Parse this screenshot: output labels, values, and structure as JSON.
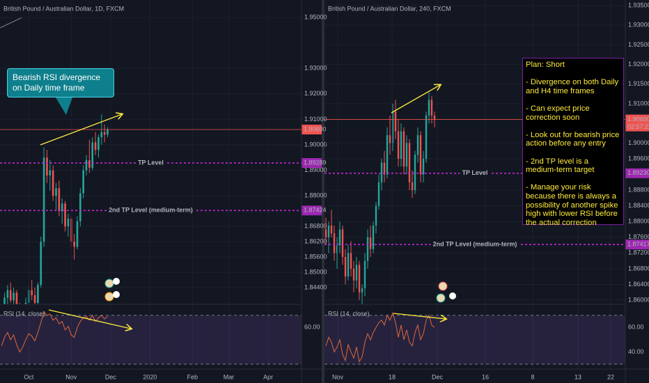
{
  "chart_data": [
    {
      "type": "candlestick",
      "title": "British Pound / Australian Dollar, 1D, FXCM",
      "up_color": "#26a69a",
      "down_color": "#ef5350",
      "grid": true,
      "xlim": [
        -0.5,
        99
      ],
      "ylim": [
        1.83743,
        1.95683
      ],
      "xticks": [
        {
          "value": 9,
          "label": "Oct"
        },
        {
          "value": 23,
          "label": "Nov"
        },
        {
          "value": 36,
          "label": "Dec"
        },
        {
          "value": 49,
          "label": "2020"
        },
        {
          "value": 63,
          "label": "Feb"
        },
        {
          "value": 75,
          "label": "Mar"
        },
        {
          "value": 88,
          "label": "Apr"
        }
      ],
      "yticks": [
        {
          "value": 1.95,
          "label": "1.95000"
        },
        {
          "value": 1.93,
          "label": "1.93000"
        },
        {
          "value": 1.92,
          "label": "1.92000"
        },
        {
          "value": 1.91,
          "label": "1.91000"
        },
        {
          "value": 1.9,
          "label": "1.90000"
        },
        {
          "value": 1.89,
          "label": "1.89000"
        },
        {
          "value": 1.88,
          "label": "1.88000"
        },
        {
          "value": 1.868,
          "label": "1.86800"
        },
        {
          "value": 1.862,
          "label": "1.86200"
        },
        {
          "value": 1.856,
          "label": "1.85600"
        },
        {
          "value": 1.85,
          "label": "1.85000"
        },
        {
          "value": 1.844,
          "label": "1.84400"
        }
      ],
      "open": [
        1.832,
        1.834,
        1.84,
        1.843,
        1.839,
        1.842,
        1.835,
        1.83,
        1.832,
        1.838,
        1.843,
        1.841,
        1.838,
        1.845,
        1.862,
        1.895,
        1.888,
        1.89,
        1.88,
        1.883,
        1.874,
        1.877,
        1.868,
        1.871,
        1.862,
        1.86,
        1.87,
        1.881,
        1.89,
        1.894,
        1.891,
        1.901,
        1.898,
        1.903,
        1.905,
        1.904
      ],
      "high": [
        1.836,
        1.842,
        1.845,
        1.846,
        1.844,
        1.843,
        1.838,
        1.834,
        1.84,
        1.845,
        1.847,
        1.844,
        1.846,
        1.864,
        1.899,
        1.898,
        1.894,
        1.892,
        1.885,
        1.886,
        1.879,
        1.878,
        1.873,
        1.872,
        1.865,
        1.872,
        1.883,
        1.892,
        1.896,
        1.902,
        1.903,
        1.905,
        1.904,
        1.912,
        1.908,
        1.907
      ],
      "low": [
        1.829,
        1.832,
        1.837,
        1.838,
        1.836,
        1.834,
        1.828,
        1.825,
        1.83,
        1.835,
        1.839,
        1.836,
        1.837,
        1.844,
        1.86,
        1.885,
        1.882,
        1.878,
        1.874,
        1.872,
        1.869,
        1.866,
        1.864,
        1.86,
        1.855,
        1.859,
        1.868,
        1.879,
        1.888,
        1.889,
        1.89,
        1.896,
        1.895,
        1.9,
        1.901,
        1.903
      ],
      "close": [
        1.834,
        1.84,
        1.843,
        1.839,
        1.842,
        1.835,
        1.83,
        1.832,
        1.838,
        1.843,
        1.841,
        1.838,
        1.845,
        1.862,
        1.895,
        1.888,
        1.89,
        1.88,
        1.883,
        1.874,
        1.877,
        1.868,
        1.871,
        1.862,
        1.86,
        1.87,
        1.881,
        1.89,
        1.894,
        1.891,
        1.901,
        1.898,
        1.903,
        1.905,
        1.904,
        1.906
      ],
      "last_price": {
        "value": 1.906,
        "label": "1.90600"
      },
      "levels": [
        {
          "name": "TP Level",
          "price": 1.89289
        },
        {
          "name": "2nd TP Level (medium-term)",
          "price": 1.87424
        }
      ],
      "annotation": "Bearish RSI divergence on Daily time frame",
      "rsi": {
        "title": "RSI (14, close)",
        "color": "#e0683a",
        "ylim": [
          26,
          79
        ],
        "yticks": [
          {
            "value": 60,
            "label": "60.00"
          }
        ],
        "levels": [
          70,
          30
        ],
        "values": [
          45,
          52,
          56,
          50,
          54,
          46,
          40,
          44,
          50,
          55,
          53,
          49,
          56,
          64,
          73,
          70,
          71,
          66,
          68,
          63,
          65,
          58,
          61,
          54,
          52,
          60,
          65,
          68,
          69,
          66,
          70,
          65,
          68,
          70,
          67,
          69
        ]
      }
    },
    {
      "type": "candlestick",
      "title": "British Pound / Australian Dollar, 240, FXCM",
      "up_color": "#26a69a",
      "down_color": "#ef5350",
      "grid": true,
      "xlim": [
        -0.5,
        107.5
      ],
      "ylim": [
        1.85894,
        1.93642
      ],
      "xticks": [
        {
          "value": 4.25,
          "label": "Nov"
        },
        {
          "value": 23.75,
          "label": "18"
        },
        {
          "value": 40,
          "label": "Dec"
        },
        {
          "value": 57.25,
          "label": "16"
        },
        {
          "value": 74.25,
          "label": "8"
        },
        {
          "value": 90.5,
          "label": "13"
        },
        {
          "value": 102.25,
          "label": "22"
        }
      ],
      "yticks": [
        {
          "value": 1.935,
          "label": "1.93500"
        },
        {
          "value": 1.93,
          "label": "1.93000"
        },
        {
          "value": 1.925,
          "label": "1.92500"
        },
        {
          "value": 1.92,
          "label": "1.92000"
        },
        {
          "value": 1.915,
          "label": "1.91500"
        },
        {
          "value": 1.91,
          "label": "1.91000"
        },
        {
          "value": 1.9,
          "label": "1.90000"
        },
        {
          "value": 1.896,
          "label": "1.89600"
        },
        {
          "value": 1.888,
          "label": "1.88800"
        },
        {
          "value": 1.884,
          "label": "1.88400"
        },
        {
          "value": 1.88,
          "label": "1.88000"
        },
        {
          "value": 1.876,
          "label": "1.87600"
        },
        {
          "value": 1.872,
          "label": "1.87200"
        },
        {
          "value": 1.868,
          "label": "1.86800"
        },
        {
          "value": 1.864,
          "label": "1.86400"
        },
        {
          "value": 1.86,
          "label": "1.86000"
        }
      ],
      "open": [
        1.878,
        1.876,
        1.879,
        1.877,
        1.872,
        1.874,
        1.878,
        1.871,
        1.866,
        1.872,
        1.868,
        1.865,
        1.869,
        1.862,
        1.863,
        1.87,
        1.876,
        1.873,
        1.879,
        1.884,
        1.89,
        1.895,
        1.892,
        1.902,
        1.9,
        1.908,
        1.903,
        1.896,
        1.903,
        1.894,
        1.9,
        1.89,
        1.888,
        1.897,
        1.902,
        1.892,
        1.896,
        1.907,
        1.911,
        1.907
      ],
      "high": [
        1.881,
        1.88,
        1.883,
        1.879,
        1.876,
        1.88,
        1.879,
        1.873,
        1.874,
        1.875,
        1.87,
        1.871,
        1.87,
        1.864,
        1.872,
        1.878,
        1.879,
        1.88,
        1.885,
        1.892,
        1.896,
        1.898,
        1.904,
        1.907,
        1.91,
        1.911,
        1.906,
        1.905,
        1.904,
        1.902,
        1.901,
        1.893,
        1.898,
        1.904,
        1.903,
        1.898,
        1.908,
        1.913,
        1.912,
        1.908
      ],
      "low": [
        1.874,
        1.872,
        1.876,
        1.87,
        1.868,
        1.872,
        1.869,
        1.864,
        1.865,
        1.866,
        1.862,
        1.863,
        1.86,
        1.859,
        1.861,
        1.868,
        1.871,
        1.872,
        1.877,
        1.883,
        1.888,
        1.89,
        1.891,
        1.897,
        1.898,
        1.901,
        1.894,
        1.894,
        1.892,
        1.892,
        1.888,
        1.886,
        1.887,
        1.895,
        1.89,
        1.89,
        1.895,
        1.905,
        1.905,
        1.904
      ],
      "close": [
        1.876,
        1.879,
        1.877,
        1.872,
        1.874,
        1.878,
        1.871,
        1.866,
        1.872,
        1.868,
        1.865,
        1.869,
        1.862,
        1.863,
        1.87,
        1.876,
        1.873,
        1.879,
        1.884,
        1.89,
        1.895,
        1.892,
        1.902,
        1.9,
        1.908,
        1.903,
        1.896,
        1.903,
        1.894,
        1.9,
        1.89,
        1.888,
        1.897,
        1.902,
        1.892,
        1.896,
        1.907,
        1.911,
        1.907,
        1.906
      ],
      "last_price": {
        "value": 1.906,
        "label": "1.90600"
      },
      "countdown": "02:57:22",
      "levels": [
        {
          "name": "TP Level",
          "price": 1.8923,
          "price_label": "1.89230"
        },
        {
          "name": "2nd TP Level (medium-term)",
          "price": 1.87417
        }
      ],
      "plan": {
        "title": "Plan: Short",
        "points": [
          "- Divergence on both Daily and H4 time frames",
          "- Can expect price correction soon",
          "- Look out for bearish price action before any entry",
          "- 2nd TP level is a medium-term target",
          "- Manage your risk because there is always a possibility of another spike high with lower RSI before the actual correction"
        ]
      },
      "rsi": {
        "title": "RSI (14, close)",
        "color": "#e0683a",
        "ylim": [
          26,
          79
        ],
        "yticks": [
          {
            "value": 60,
            "label": "60.00"
          },
          {
            "value": 40,
            "label": "40.00"
          }
        ],
        "levels": [
          70,
          30
        ],
        "values": [
          45,
          52,
          48,
          40,
          44,
          50,
          38,
          33,
          46,
          40,
          35,
          44,
          32,
          36,
          48,
          55,
          50,
          56,
          60,
          64,
          66,
          62,
          70,
          66,
          72,
          64,
          52,
          62,
          50,
          58,
          48,
          45,
          56,
          62,
          50,
          55,
          66,
          70,
          62,
          60
        ]
      }
    }
  ]
}
